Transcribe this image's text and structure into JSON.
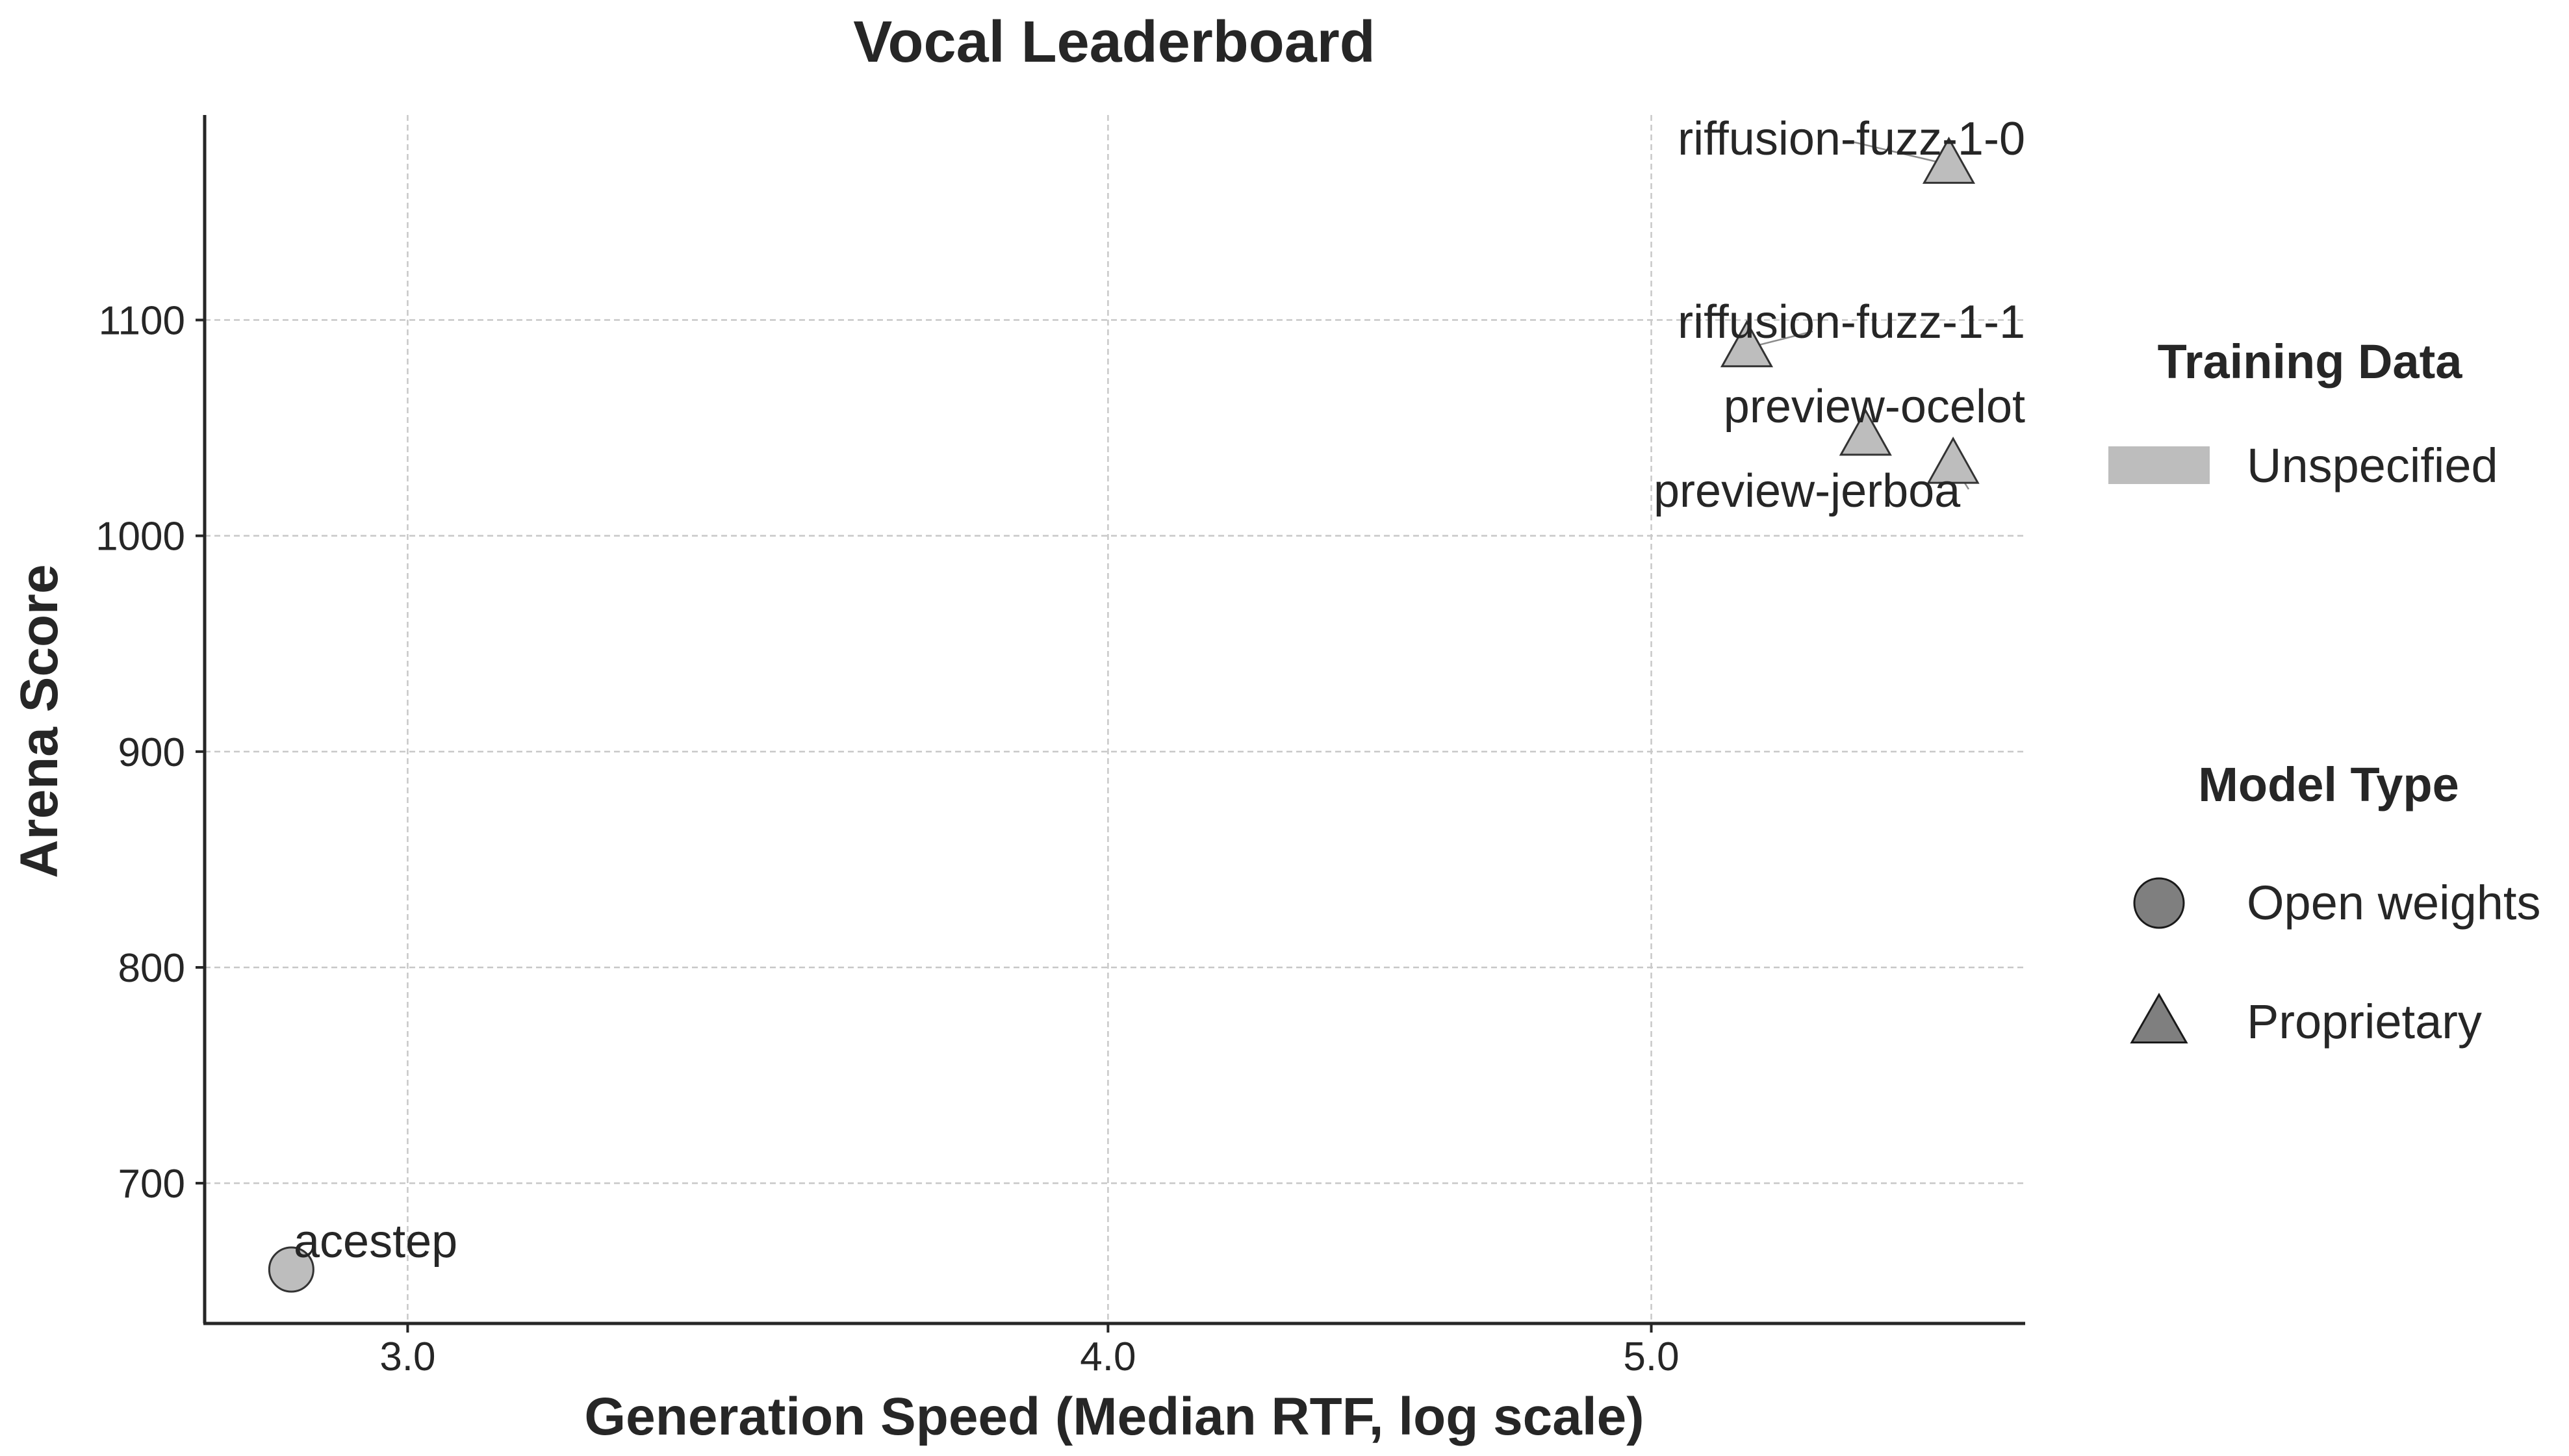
{
  "chart_data": {
    "type": "scatter",
    "title": "Vocal Leaderboard",
    "xlabel": "Generation Speed (Median RTF, log scale)",
    "ylabel": "Arena Score",
    "xscale": "log",
    "xlim": [
      2.76,
      5.83
    ],
    "ylim": [
      635,
      1195
    ],
    "xticks": [
      3.0,
      4.0,
      5.0
    ],
    "xtick_labels": [
      "3.0",
      "4.0",
      "5.0"
    ],
    "yticks": [
      700,
      800,
      900,
      1000,
      1100
    ],
    "ytick_labels": [
      "700",
      "800",
      "900",
      "1000",
      "1100"
    ],
    "grid": true,
    "points": [
      {
        "label": "riffusion-fuzz-1-0",
        "x": 5.65,
        "y": 1172,
        "model_type": "Proprietary",
        "training_data": "Unspecified"
      },
      {
        "label": "riffusion-fuzz-1-1",
        "x": 5.2,
        "y": 1087,
        "model_type": "Proprietary",
        "training_data": "Unspecified"
      },
      {
        "label": "preview-ocelot",
        "x": 5.46,
        "y": 1046,
        "model_type": "Proprietary",
        "training_data": "Unspecified"
      },
      {
        "label": "preview-jerboa",
        "x": 5.66,
        "y": 1033,
        "model_type": "Proprietary",
        "training_data": "Unspecified"
      },
      {
        "label": "acestep",
        "x": 2.86,
        "y": 660,
        "model_type": "Open weights",
        "training_data": "Unspecified"
      }
    ],
    "legends": [
      {
        "title": "Training Data",
        "entries": [
          {
            "label": "Unspecified",
            "marker": "patch",
            "color": "#bdbdbd"
          }
        ]
      },
      {
        "title": "Model Type",
        "entries": [
          {
            "label": "Open weights",
            "marker": "circle",
            "color": "#7f7f7f"
          },
          {
            "label": "Proprietary",
            "marker": "triangle",
            "color": "#7f7f7f"
          }
        ]
      }
    ],
    "legend_placement": "right",
    "colors": {
      "point_fill": "#bdbdbd",
      "point_edge": "#333333",
      "legend_marker": "#7f7f7f",
      "grid": "#c8c8c8",
      "text": "#262626"
    }
  }
}
